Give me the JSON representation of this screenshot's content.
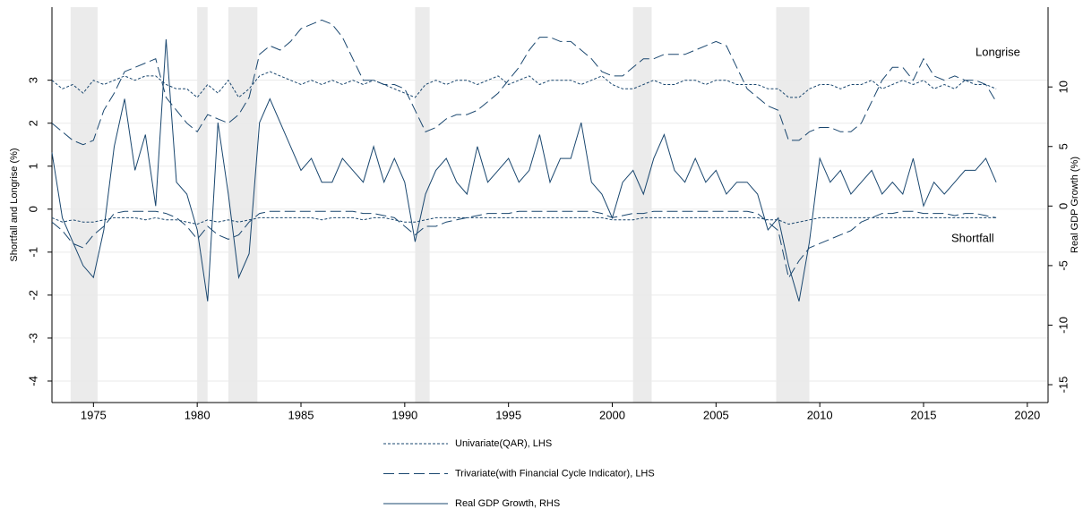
{
  "chart_data": {
    "type": "line",
    "y_label": "Shortfall and Longrise (%)",
    "y2_label": "Real GDP Growth (%)",
    "annotations": {
      "longrise": "Longrise",
      "shortfall": "Shortfall"
    },
    "x": [
      1973,
      1973.5,
      1974,
      1974.5,
      1975,
      1975.5,
      1976,
      1976.5,
      1977,
      1977.5,
      1978,
      1978.5,
      1979,
      1979.5,
      1980,
      1980.5,
      1981,
      1981.5,
      1982,
      1982.5,
      1983,
      1983.5,
      1984,
      1984.5,
      1985,
      1985.5,
      1986,
      1986.5,
      1987,
      1987.5,
      1988,
      1988.5,
      1989,
      1989.5,
      1990,
      1990.5,
      1991,
      1991.5,
      1992,
      1992.5,
      1993,
      1993.5,
      1994,
      1994.5,
      1995,
      1995.5,
      1996,
      1996.5,
      1997,
      1997.5,
      1998,
      1998.5,
      1999,
      1999.5,
      2000,
      2000.5,
      2001,
      2001.5,
      2002,
      2002.5,
      2003,
      2003.5,
      2004,
      2004.5,
      2005,
      2005.5,
      2006,
      2006.5,
      2007,
      2007.5,
      2008,
      2008.5,
      2009,
      2009.5,
      2010,
      2010.5,
      2011,
      2011.5,
      2012,
      2012.5,
      2013,
      2013.5,
      2014,
      2014.5,
      2015,
      2015.5,
      2016,
      2016.5,
      2017,
      2017.5,
      2018,
      2018.5
    ],
    "series": [
      {
        "name": "Univariate(QAR), LHS",
        "color": "#1a476f",
        "style": "dotted",
        "axis": "y",
        "longrise": [
          3.0,
          2.8,
          2.9,
          2.7,
          3.0,
          2.9,
          3.0,
          3.1,
          3.0,
          3.1,
          3.1,
          2.9,
          2.8,
          2.8,
          2.6,
          2.9,
          2.7,
          3.0,
          2.6,
          2.8,
          3.1,
          3.2,
          3.1,
          3.0,
          2.9,
          3.0,
          2.9,
          3.0,
          2.9,
          3.0,
          2.9,
          3.0,
          2.9,
          2.8,
          2.7,
          2.6,
          2.9,
          3.0,
          2.9,
          3.0,
          3.0,
          2.9,
          3.0,
          3.1,
          2.9,
          3.0,
          3.1,
          2.9,
          3.0,
          3.0,
          3.0,
          2.9,
          3.0,
          3.1,
          2.9,
          2.8,
          2.8,
          2.9,
          3.0,
          2.9,
          2.9,
          3.0,
          3.0,
          2.9,
          3.0,
          3.0,
          2.9,
          2.9,
          2.9,
          2.8,
          2.8,
          2.6,
          2.6,
          2.8,
          2.9,
          2.9,
          2.8,
          2.9,
          2.9,
          3.0,
          2.8,
          2.9,
          3.0,
          2.9,
          3.0,
          2.8,
          2.9,
          2.8,
          3.0,
          2.9,
          2.9,
          2.8
        ],
        "shortfall": [
          -0.2,
          -0.3,
          -0.25,
          -0.3,
          -0.3,
          -0.25,
          -0.2,
          -0.2,
          -0.2,
          -0.25,
          -0.2,
          -0.25,
          -0.25,
          -0.3,
          -0.35,
          -0.25,
          -0.3,
          -0.25,
          -0.3,
          -0.25,
          -0.2,
          -0.2,
          -0.2,
          -0.2,
          -0.2,
          -0.2,
          -0.25,
          -0.2,
          -0.2,
          -0.2,
          -0.25,
          -0.2,
          -0.2,
          -0.25,
          -0.3,
          -0.3,
          -0.25,
          -0.2,
          -0.2,
          -0.2,
          -0.2,
          -0.2,
          -0.2,
          -0.2,
          -0.2,
          -0.2,
          -0.2,
          -0.2,
          -0.2,
          -0.2,
          -0.2,
          -0.2,
          -0.2,
          -0.2,
          -0.25,
          -0.25,
          -0.25,
          -0.2,
          -0.2,
          -0.2,
          -0.2,
          -0.2,
          -0.2,
          -0.2,
          -0.2,
          -0.2,
          -0.2,
          -0.2,
          -0.2,
          -0.25,
          -0.25,
          -0.35,
          -0.3,
          -0.25,
          -0.2,
          -0.2,
          -0.2,
          -0.2,
          -0.2,
          -0.2,
          -0.2,
          -0.2,
          -0.2,
          -0.2,
          -0.2,
          -0.2,
          -0.2,
          -0.2,
          -0.2,
          -0.2,
          -0.2,
          -0.2
        ]
      },
      {
        "name": "Trivariate(with Financial Cycle Indicator), LHS",
        "color": "#1a476f",
        "style": "dashed",
        "axis": "y",
        "longrise": [
          2.0,
          1.8,
          1.6,
          1.5,
          1.6,
          2.3,
          2.7,
          3.2,
          3.3,
          3.4,
          3.5,
          2.6,
          2.3,
          2.0,
          1.8,
          2.2,
          2.1,
          2.0,
          2.2,
          2.6,
          3.6,
          3.8,
          3.7,
          3.9,
          4.2,
          4.3,
          4.4,
          4.3,
          4.0,
          3.5,
          3.0,
          3.0,
          2.9,
          2.9,
          2.8,
          2.3,
          1.8,
          1.9,
          2.1,
          2.2,
          2.2,
          2.3,
          2.5,
          2.7,
          3.0,
          3.3,
          3.7,
          4.0,
          4.0,
          3.9,
          3.9,
          3.7,
          3.5,
          3.2,
          3.1,
          3.1,
          3.3,
          3.5,
          3.5,
          3.6,
          3.6,
          3.6,
          3.7,
          3.8,
          3.9,
          3.8,
          3.3,
          2.8,
          2.6,
          2.4,
          2.3,
          1.6,
          1.6,
          1.8,
          1.9,
          1.9,
          1.8,
          1.8,
          2.0,
          2.5,
          3.0,
          3.3,
          3.3,
          3.0,
          3.5,
          3.1,
          3.0,
          3.1,
          3.0,
          3.0,
          2.9,
          2.5
        ],
        "shortfall": [
          -0.3,
          -0.5,
          -0.8,
          -0.9,
          -0.6,
          -0.4,
          -0.1,
          -0.05,
          -0.05,
          -0.05,
          -0.05,
          -0.1,
          -0.2,
          -0.4,
          -0.7,
          -0.4,
          -0.6,
          -0.7,
          -0.6,
          -0.3,
          -0.1,
          -0.05,
          -0.05,
          -0.05,
          -0.05,
          -0.05,
          -0.05,
          -0.05,
          -0.05,
          -0.05,
          -0.1,
          -0.1,
          -0.15,
          -0.2,
          -0.4,
          -0.6,
          -0.4,
          -0.4,
          -0.3,
          -0.25,
          -0.2,
          -0.15,
          -0.1,
          -0.1,
          -0.1,
          -0.05,
          -0.05,
          -0.05,
          -0.05,
          -0.05,
          -0.05,
          -0.05,
          -0.05,
          -0.1,
          -0.2,
          -0.15,
          -0.1,
          -0.1,
          -0.05,
          -0.05,
          -0.05,
          -0.05,
          -0.05,
          -0.05,
          -0.05,
          -0.05,
          -0.05,
          -0.05,
          -0.1,
          -0.3,
          -0.5,
          -1.6,
          -1.2,
          -0.9,
          -0.8,
          -0.7,
          -0.6,
          -0.5,
          -0.3,
          -0.2,
          -0.1,
          -0.1,
          -0.05,
          -0.05,
          -0.1,
          -0.1,
          -0.1,
          -0.15,
          -0.1,
          -0.1,
          -0.15,
          -0.2
        ]
      },
      {
        "name": "Real GDP Growth, RHS",
        "color": "#1a476f",
        "style": "solid",
        "axis": "y2",
        "values": [
          4.5,
          -1,
          -3,
          -5,
          -6,
          -2,
          5,
          9,
          3,
          6,
          0,
          14,
          2,
          1,
          -2,
          -8,
          7,
          1,
          -6,
          -4,
          7,
          9,
          7,
          5,
          3,
          4,
          2,
          2,
          4,
          3,
          2,
          5,
          2,
          4,
          2,
          -3,
          1,
          3,
          4,
          2,
          1,
          5,
          2,
          3,
          4,
          2,
          3,
          6,
          2,
          4,
          4,
          7,
          2,
          1,
          -1,
          2,
          3,
          1,
          4,
          6,
          3,
          2,
          4,
          2,
          3,
          1,
          2,
          2,
          1,
          -2,
          -1,
          -5,
          -8,
          -3,
          4,
          2,
          3,
          1,
          2,
          3,
          1,
          2,
          1,
          4,
          0,
          2,
          1,
          2,
          3,
          3,
          4,
          2
        ]
      }
    ],
    "recessions": [
      [
        1973.9,
        1975.2
      ],
      [
        1980.0,
        1980.5
      ],
      [
        1981.5,
        1982.9
      ],
      [
        1990.5,
        1991.2
      ],
      [
        2001.0,
        2001.9
      ],
      [
        2007.9,
        2009.5
      ]
    ],
    "recession_color": "#ebebeb",
    "xlim": [
      1973,
      2021
    ],
    "xticks": [
      1975,
      1980,
      1985,
      1990,
      1995,
      2000,
      2005,
      2010,
      2015,
      2020
    ],
    "ylim": [
      -4.5,
      4.7
    ],
    "yticks": [
      -4,
      -3,
      -2,
      -1,
      0,
      1,
      2,
      3
    ],
    "y2lim": [
      -16.5,
      16.7
    ],
    "y2ticks": [
      -15,
      -10,
      -5,
      0,
      5,
      10
    ],
    "grid": true
  }
}
